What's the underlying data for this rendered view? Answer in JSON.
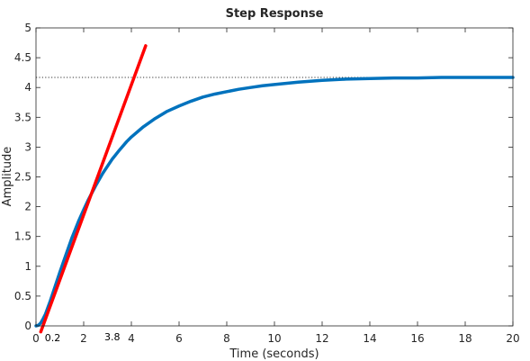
{
  "chart_data": {
    "type": "line",
    "title": "Step Response",
    "xlabel": "Time (seconds)",
    "ylabel": "Amplitude",
    "xlim": [
      0,
      20
    ],
    "ylim": [
      0,
      5
    ],
    "xticks": [
      "0",
      "2",
      "4",
      "6",
      "8",
      "10",
      "12",
      "14",
      "16",
      "18",
      "20"
    ],
    "yticks": [
      "0",
      "0.5",
      "1",
      "1.5",
      "2",
      "2.5",
      "3",
      "3.5",
      "4",
      "4.5",
      "5"
    ],
    "grid": false,
    "legend": "none",
    "series": [
      {
        "color": "#0072BD",
        "x": [
          0,
          0.1,
          0.2,
          0.3,
          0.4,
          0.6,
          0.8,
          1.0,
          1.2,
          1.5,
          1.8,
          2.0,
          2.2,
          2.5,
          2.8,
          3.0,
          3.2,
          3.5,
          3.8,
          4.0,
          4.5,
          5.0,
          5.5,
          6.0,
          6.5,
          7.0,
          7.5,
          8.0,
          8.5,
          9.0,
          9.5,
          10.0,
          11.0,
          12.0,
          13.0,
          14.0,
          15.0,
          16.0,
          17.0,
          18.0,
          19.0,
          20.0
        ],
        "y": [
          0,
          0.01,
          0.05,
          0.12,
          0.2,
          0.42,
          0.66,
          0.9,
          1.13,
          1.47,
          1.77,
          1.95,
          2.12,
          2.35,
          2.56,
          2.68,
          2.8,
          2.95,
          3.09,
          3.17,
          3.34,
          3.48,
          3.6,
          3.69,
          3.77,
          3.84,
          3.89,
          3.93,
          3.97,
          4.0,
          4.03,
          4.05,
          4.09,
          4.12,
          4.14,
          4.15,
          4.16,
          4.16,
          4.17,
          4.17,
          4.17,
          4.17
        ]
      }
    ],
    "tangent": {
      "color": "#ff0000",
      "x": [
        0.2,
        4.6
      ],
      "y": [
        -0.1,
        4.7
      ]
    },
    "steady_state": {
      "y": 4.17,
      "style": "dotted"
    },
    "annotations": [
      {
        "label": "0.2",
        "x": 0.7,
        "y": -0.2
      },
      {
        "label": "3.8",
        "x": 3.2,
        "y": -0.18
      }
    ]
  }
}
